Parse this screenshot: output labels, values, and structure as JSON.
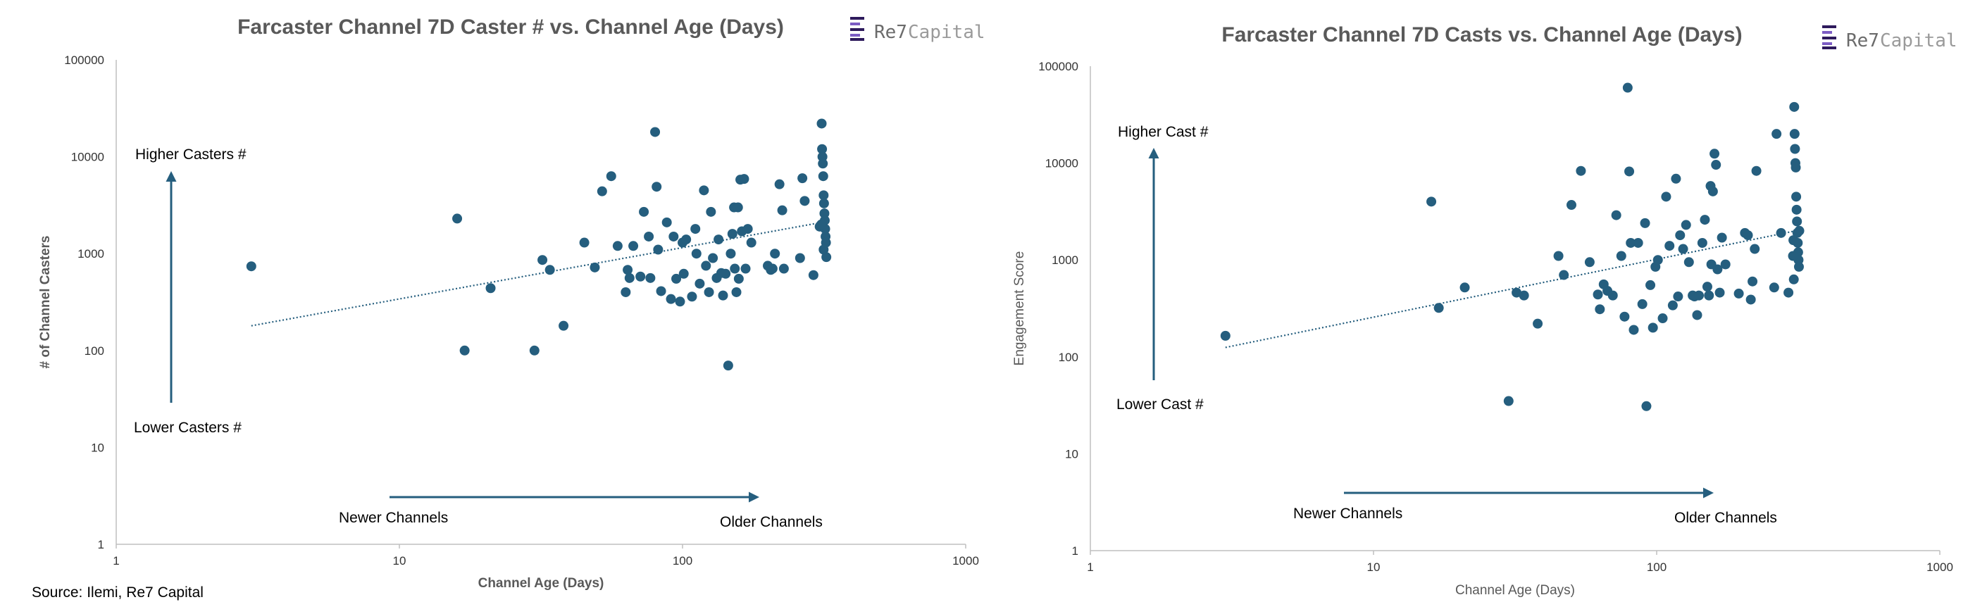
{
  "source": "Source: Ilemi, Re7 Capital",
  "colors": {
    "marker": "#255E7E",
    "title": "#595959",
    "axis": "#BFBFBF",
    "arrow": "#255E7E",
    "logo_primary": "#6B6B6B",
    "logo_secondary": "#9A9A9A",
    "logo_mark": "#2E1A5C",
    "logo_mark_accent": "#7C5CC4"
  },
  "logo": {
    "primary": "Re7",
    "secondary": "Capital",
    "icon": "re7-logo-icon"
  },
  "chart_data": [
    {
      "type": "scatter",
      "title": "Farcaster Channel 7D Caster #  vs. Channel Age (Days)",
      "xlabel": "Channel Age (Days)",
      "ylabel": "# of Channel Casters",
      "xscale": "log",
      "yscale": "log",
      "xlim": [
        1,
        1000
      ],
      "ylim": [
        1,
        100000
      ],
      "xticks": [
        {
          "v": 1,
          "label": "1"
        },
        {
          "v": 10,
          "label": "10"
        },
        {
          "v": 100,
          "label": "100"
        },
        {
          "v": 1000,
          "label": "1000"
        }
      ],
      "yticks": [
        {
          "v": 1,
          "label": "1"
        },
        {
          "v": 10,
          "label": "10"
        },
        {
          "v": 100,
          "label": "100"
        },
        {
          "v": 1000,
          "label": "1000"
        },
        {
          "v": 10000,
          "label": "10000"
        },
        {
          "v": 100000,
          "label": "100000"
        }
      ],
      "trendline": {
        "style": "dotted",
        "x": [
          3,
          310
        ],
        "y": [
          180,
          2100
        ]
      },
      "annotations": {
        "higher": "Higher Casters #",
        "lower": "Lower Casters #",
        "newer": "Newer Channels",
        "older": "Older Channels"
      },
      "points": [
        [
          3,
          740
        ],
        [
          16,
          2300
        ],
        [
          17,
          100
        ],
        [
          21,
          440
        ],
        [
          30,
          100
        ],
        [
          32,
          860
        ],
        [
          34,
          680
        ],
        [
          38,
          180
        ],
        [
          45,
          1300
        ],
        [
          49,
          720
        ],
        [
          52,
          4400
        ],
        [
          56,
          6300
        ],
        [
          59,
          1200
        ],
        [
          63,
          400
        ],
        [
          64,
          680
        ],
        [
          65,
          560
        ],
        [
          67,
          1200
        ],
        [
          71,
          580
        ],
        [
          73,
          2700
        ],
        [
          76,
          1500
        ],
        [
          77,
          560
        ],
        [
          80,
          18000
        ],
        [
          81,
          4900
        ],
        [
          82,
          1100
        ],
        [
          84,
          410
        ],
        [
          88,
          2100
        ],
        [
          91,
          340
        ],
        [
          93,
          1500
        ],
        [
          95,
          550
        ],
        [
          98,
          320
        ],
        [
          100,
          1300
        ],
        [
          101,
          620
        ],
        [
          103,
          1400
        ],
        [
          108,
          360
        ],
        [
          111,
          1800
        ],
        [
          112,
          1000
        ],
        [
          115,
          490
        ],
        [
          119,
          4500
        ],
        [
          121,
          750
        ],
        [
          124,
          400
        ],
        [
          126,
          2700
        ],
        [
          128,
          900
        ],
        [
          132,
          560
        ],
        [
          134,
          1400
        ],
        [
          137,
          630
        ],
        [
          139,
          370
        ],
        [
          142,
          620
        ],
        [
          145,
          70
        ],
        [
          148,
          1000
        ],
        [
          150,
          1600
        ],
        [
          152,
          3000
        ],
        [
          153,
          700
        ],
        [
          155,
          400
        ],
        [
          157,
          3000
        ],
        [
          158,
          550
        ],
        [
          160,
          5800
        ],
        [
          162,
          1700
        ],
        [
          165,
          5900
        ],
        [
          167,
          700
        ],
        [
          170,
          1800
        ],
        [
          175,
          1300
        ],
        [
          200,
          750
        ],
        [
          205,
          680
        ],
        [
          208,
          700
        ],
        [
          212,
          1000
        ],
        [
          220,
          5200
        ],
        [
          225,
          2800
        ],
        [
          228,
          700
        ],
        [
          260,
          900
        ],
        [
          265,
          6000
        ],
        [
          270,
          3500
        ],
        [
          290,
          600
        ],
        [
          305,
          1900
        ],
        [
          310,
          22000
        ],
        [
          311,
          12000
        ],
        [
          312,
          10000
        ],
        [
          313,
          8500
        ],
        [
          314,
          6300
        ],
        [
          315,
          4000
        ],
        [
          316,
          3300
        ],
        [
          317,
          2600
        ],
        [
          318,
          2200
        ],
        [
          319,
          1800
        ],
        [
          320,
          1500
        ],
        [
          321,
          1300
        ],
        [
          322,
          920
        ],
        [
          315,
          1100
        ],
        [
          309,
          2000
        ]
      ]
    },
    {
      "type": "scatter",
      "title": "Farcaster Channel 7D Casts  vs. Channel Age (Days)",
      "xlabel": "Channel Age (Days)",
      "ylabel": "Engagement Score",
      "xscale": "log",
      "yscale": "log",
      "xlim": [
        1,
        1000
      ],
      "ylim": [
        1,
        100000
      ],
      "xticks": [
        {
          "v": 1,
          "label": "1"
        },
        {
          "v": 10,
          "label": "10"
        },
        {
          "v": 100,
          "label": "100"
        },
        {
          "v": 1000,
          "label": "1000"
        }
      ],
      "yticks": [
        {
          "v": 1,
          "label": "1"
        },
        {
          "v": 10,
          "label": "10"
        },
        {
          "v": 100,
          "label": "100"
        },
        {
          "v": 1000,
          "label": "1000"
        },
        {
          "v": 10000,
          "label": "10000"
        },
        {
          "v": 100000,
          "label": "100000"
        }
      ],
      "trendline": {
        "style": "dotted",
        "x": [
          3,
          310
        ],
        "y": [
          125,
          2000
        ]
      },
      "annotations": {
        "higher": "Higher Cast #",
        "lower": "Lower Cast #",
        "newer": "Newer Channels",
        "older": "Older Channels"
      },
      "points": [
        [
          3,
          165
        ],
        [
          16,
          4000
        ],
        [
          17,
          320
        ],
        [
          21,
          520
        ],
        [
          30,
          35
        ],
        [
          32,
          460
        ],
        [
          34,
          430
        ],
        [
          38,
          220
        ],
        [
          45,
          1100
        ],
        [
          47,
          700
        ],
        [
          50,
          3700
        ],
        [
          54,
          8300
        ],
        [
          58,
          950
        ],
        [
          62,
          440
        ],
        [
          63,
          310
        ],
        [
          65,
          560
        ],
        [
          67,
          480
        ],
        [
          70,
          430
        ],
        [
          72,
          2900
        ],
        [
          75,
          1100
        ],
        [
          77,
          260
        ],
        [
          79,
          60000
        ],
        [
          80,
          8200
        ],
        [
          81,
          1500
        ],
        [
          83,
          190
        ],
        [
          86,
          1500
        ],
        [
          89,
          350
        ],
        [
          91,
          2400
        ],
        [
          92,
          31
        ],
        [
          95,
          550
        ],
        [
          97,
          200
        ],
        [
          99,
          850
        ],
        [
          101,
          1000
        ],
        [
          105,
          250
        ],
        [
          108,
          4500
        ],
        [
          111,
          1400
        ],
        [
          114,
          340
        ],
        [
          117,
          6900
        ],
        [
          119,
          420
        ],
        [
          121,
          1800
        ],
        [
          124,
          1300
        ],
        [
          127,
          2300
        ],
        [
          130,
          950
        ],
        [
          134,
          430
        ],
        [
          136,
          420
        ],
        [
          139,
          270
        ],
        [
          141,
          430
        ],
        [
          145,
          1500
        ],
        [
          148,
          2600
        ],
        [
          151,
          530
        ],
        [
          153,
          430
        ],
        [
          155,
          5800
        ],
        [
          156,
          900
        ],
        [
          158,
          5100
        ],
        [
          160,
          12500
        ],
        [
          162,
          9600
        ],
        [
          164,
          800
        ],
        [
          167,
          460
        ],
        [
          170,
          1700
        ],
        [
          175,
          900
        ],
        [
          195,
          450
        ],
        [
          205,
          1900
        ],
        [
          210,
          1800
        ],
        [
          215,
          390
        ],
        [
          218,
          600
        ],
        [
          222,
          1300
        ],
        [
          225,
          8300
        ],
        [
          260,
          520
        ],
        [
          265,
          20000
        ],
        [
          275,
          1900
        ],
        [
          292,
          460
        ],
        [
          305,
          630
        ],
        [
          306,
          38000
        ],
        [
          307,
          20000
        ],
        [
          308,
          14000
        ],
        [
          309,
          10000
        ],
        [
          310,
          9000
        ],
        [
          311,
          4500
        ],
        [
          312,
          3300
        ],
        [
          313,
          2500
        ],
        [
          314,
          1900
        ],
        [
          315,
          1500
        ],
        [
          316,
          1200
        ],
        [
          317,
          1000
        ],
        [
          318,
          850
        ],
        [
          304,
          1600
        ],
        [
          303,
          1100
        ],
        [
          319,
          2000
        ]
      ]
    }
  ]
}
